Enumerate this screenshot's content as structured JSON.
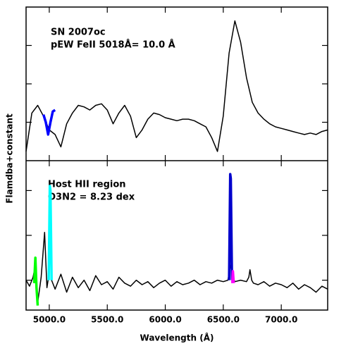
{
  "chart_data": [
    {
      "type": "line",
      "ylabel": "Flamdba+constant",
      "annotations": [
        "SN 2007oc",
        "pEW FeII 5018Å= 10.0 Å"
      ],
      "xlim": [
        4800,
        7400
      ],
      "xticks": [
        5000,
        5500,
        6000,
        6500,
        7000
      ],
      "ylim": [
        0,
        1
      ],
      "yticks": [
        0.25,
        0.5,
        0.75
      ],
      "series": [
        {
          "color": "#000000",
          "x": [
            4800,
            4850,
            4900,
            4950,
            5000,
            5050,
            5100,
            5150,
            5200,
            5250,
            5300,
            5350,
            5400,
            5450,
            5500,
            5550,
            5600,
            5650,
            5700,
            5750,
            5800,
            5850,
            5900,
            5950,
            6000,
            6050,
            6100,
            6150,
            6200,
            6250,
            6300,
            6350,
            6400,
            6450,
            6500,
            6550,
            6600,
            6650,
            6700,
            6750,
            6800,
            6850,
            6900,
            6950,
            7000,
            7050,
            7100,
            7150,
            7200,
            7250,
            7300,
            7350,
            7400
          ],
          "values": [
            0.06,
            0.31,
            0.36,
            0.29,
            0.2,
            0.17,
            0.09,
            0.24,
            0.31,
            0.36,
            0.35,
            0.33,
            0.36,
            0.37,
            0.33,
            0.24,
            0.31,
            0.36,
            0.29,
            0.15,
            0.2,
            0.27,
            0.31,
            0.3,
            0.28,
            0.27,
            0.26,
            0.27,
            0.27,
            0.26,
            0.24,
            0.22,
            0.15,
            0.06,
            0.29,
            0.7,
            0.91,
            0.77,
            0.54,
            0.38,
            0.31,
            0.27,
            0.24,
            0.22,
            0.21,
            0.2,
            0.19,
            0.18,
            0.17,
            0.18,
            0.17,
            0.19,
            0.2
          ]
        },
        {
          "color": "#0000ff",
          "x": [
            4950,
            4970,
            4990,
            5010,
            5030,
            5050
          ],
          "values": [
            0.3,
            0.25,
            0.17,
            0.25,
            0.32,
            0.33
          ]
        }
      ]
    },
    {
      "type": "line",
      "xlabel": "Wavelength (Å)",
      "annotations": [
        "Host HII region",
        "O3N2 = 8.23 dex"
      ],
      "xlim": [
        4800,
        7400
      ],
      "xticks": [
        {
          "value": 5000,
          "label": "5000.0"
        },
        {
          "value": 5500,
          "label": "5500.0"
        },
        {
          "value": 6000,
          "label": "6000.0"
        },
        {
          "value": 6500,
          "label": "6500.0"
        },
        {
          "value": 7000,
          "label": "7000.0"
        }
      ],
      "ylim": [
        0,
        1
      ],
      "yticks": [
        0.2,
        0.5,
        0.8
      ],
      "series": [
        {
          "color": "#000000",
          "x": [
            4800,
            4830,
            4860,
            4880,
            4900,
            4930,
            4960,
            4980,
            5000,
            5007,
            5020,
            5050,
            5100,
            5150,
            5200,
            5250,
            5300,
            5350,
            5400,
            5450,
            5500,
            5550,
            5600,
            5650,
            5700,
            5750,
            5800,
            5850,
            5900,
            5950,
            6000,
            6050,
            6100,
            6150,
            6200,
            6250,
            6300,
            6350,
            6400,
            6450,
            6500,
            6540,
            6563,
            6583,
            6600,
            6650,
            6700,
            6720,
            6730,
            6745,
            6760,
            6800,
            6850,
            6900,
            6950,
            7000,
            7050,
            7100,
            7150,
            7200,
            7250,
            7300,
            7350,
            7400
          ],
          "values": [
            0.2,
            0.16,
            0.22,
            0.3,
            0.05,
            0.22,
            0.52,
            0.15,
            0.25,
            0.6,
            0.2,
            0.14,
            0.24,
            0.12,
            0.22,
            0.15,
            0.2,
            0.13,
            0.23,
            0.17,
            0.19,
            0.14,
            0.22,
            0.18,
            0.16,
            0.2,
            0.17,
            0.19,
            0.15,
            0.18,
            0.2,
            0.16,
            0.19,
            0.17,
            0.18,
            0.2,
            0.17,
            0.19,
            0.18,
            0.2,
            0.19,
            0.2,
            0.3,
            0.22,
            0.19,
            0.2,
            0.19,
            0.22,
            0.27,
            0.2,
            0.18,
            0.17,
            0.19,
            0.16,
            0.18,
            0.17,
            0.15,
            0.18,
            0.14,
            0.17,
            0.15,
            0.12,
            0.16,
            0.14
          ]
        },
        {
          "color": "#00ff00",
          "x": [
            4870,
            4880,
            4890,
            4900
          ],
          "values": [
            0.18,
            0.35,
            0.15,
            0.03
          ]
        },
        {
          "color": "#00ffff",
          "x": [
            4995,
            5005,
            5010,
            5020
          ],
          "values": [
            0.2,
            0.83,
            0.8,
            0.2
          ]
        },
        {
          "color": "#0000cc",
          "x": [
            6550,
            6560,
            6565,
            6575
          ],
          "values": [
            0.2,
            0.91,
            0.88,
            0.2
          ]
        },
        {
          "color": "#ff00ff",
          "x": [
            6578,
            6583,
            6590
          ],
          "values": [
            0.18,
            0.26,
            0.18
          ]
        }
      ]
    }
  ]
}
